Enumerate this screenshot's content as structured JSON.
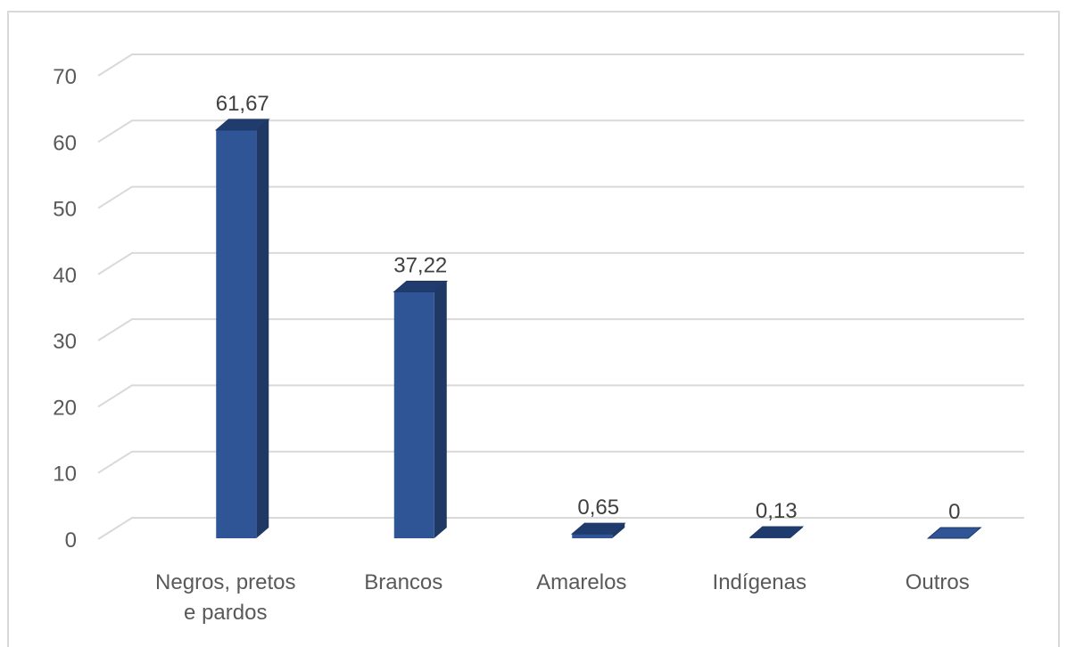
{
  "chart_data": {
    "type": "bar",
    "style": "3d-column",
    "categories": [
      [
        "Negros, pretos",
        "e pardos"
      ],
      [
        "Brancos"
      ],
      [
        "Amarelos"
      ],
      [
        "Indígenas"
      ],
      [
        "Outros"
      ]
    ],
    "values": [
      61.67,
      37.22,
      0.65,
      0.13,
      0
    ],
    "data_labels": [
      "61,67",
      "37,22",
      "0,65",
      "0,13",
      "0"
    ],
    "y_ticks": [
      "0",
      "10",
      "20",
      "30",
      "40",
      "50",
      "60",
      "70"
    ],
    "ylim": [
      0,
      70
    ],
    "grid": true,
    "legend": "none",
    "colors": {
      "bar_front": "#2f5597",
      "bar_side": "#1f3864",
      "bar_top": "#203c6e",
      "grid": "#d9d9d9"
    }
  }
}
